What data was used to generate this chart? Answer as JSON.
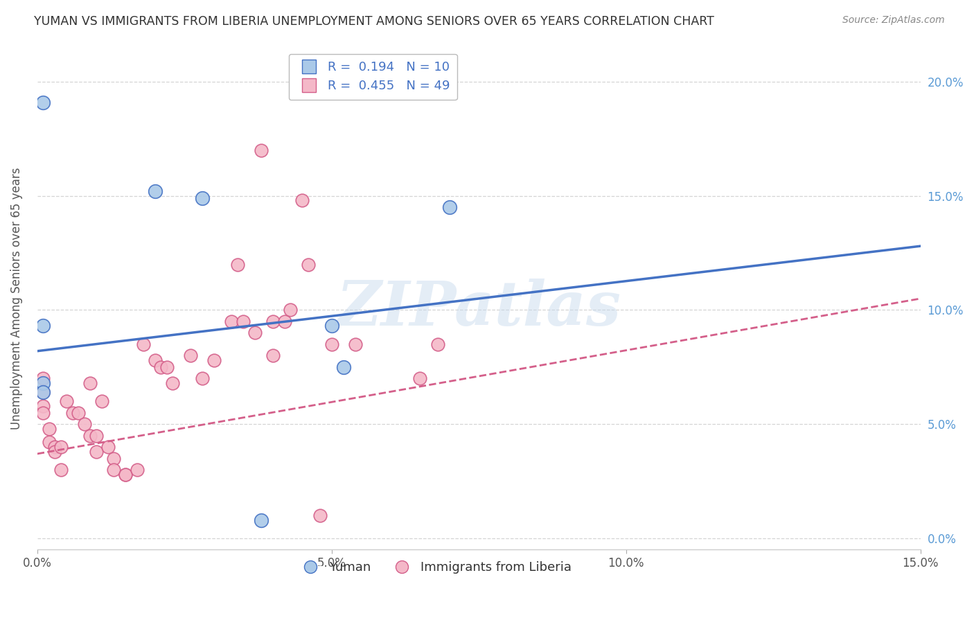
{
  "title": "YUMAN VS IMMIGRANTS FROM LIBERIA UNEMPLOYMENT AMONG SENIORS OVER 65 YEARS CORRELATION CHART",
  "source": "Source: ZipAtlas.com",
  "ylabel": "Unemployment Among Seniors over 65 years",
  "xlim": [
    0.0,
    0.15
  ],
  "ylim": [
    -0.005,
    0.215
  ],
  "xticks": [
    0.0,
    0.05,
    0.1,
    0.15
  ],
  "yticks": [
    0.0,
    0.05,
    0.1,
    0.15,
    0.2
  ],
  "xtick_labels": [
    "0.0%",
    "5.0%",
    "10.0%",
    "15.0%"
  ],
  "ytick_labels": [
    "0.0%",
    "5.0%",
    "10.0%",
    "15.0%",
    "20.0%"
  ],
  "watermark": "ZIPatlas",
  "blue_R": 0.194,
  "blue_N": 10,
  "pink_R": 0.455,
  "pink_N": 49,
  "blue_fill_color": "#aac9e8",
  "blue_edge_color": "#4472c4",
  "pink_fill_color": "#f4b8c8",
  "pink_edge_color": "#d45f8a",
  "blue_line_color": "#4472c4",
  "pink_line_color": "#d45f8a",
  "blue_scatter": [
    [
      0.001,
      0.191
    ],
    [
      0.02,
      0.152
    ],
    [
      0.028,
      0.149
    ],
    [
      0.001,
      0.093
    ],
    [
      0.001,
      0.068
    ],
    [
      0.001,
      0.064
    ],
    [
      0.05,
      0.093
    ],
    [
      0.052,
      0.075
    ],
    [
      0.07,
      0.145
    ],
    [
      0.038,
      0.008
    ]
  ],
  "pink_scatter": [
    [
      0.001,
      0.07
    ],
    [
      0.001,
      0.064
    ],
    [
      0.001,
      0.058
    ],
    [
      0.001,
      0.055
    ],
    [
      0.002,
      0.048
    ],
    [
      0.002,
      0.042
    ],
    [
      0.003,
      0.04
    ],
    [
      0.003,
      0.038
    ],
    [
      0.004,
      0.04
    ],
    [
      0.004,
      0.03
    ],
    [
      0.005,
      0.06
    ],
    [
      0.006,
      0.055
    ],
    [
      0.007,
      0.055
    ],
    [
      0.008,
      0.05
    ],
    [
      0.009,
      0.045
    ],
    [
      0.009,
      0.068
    ],
    [
      0.01,
      0.045
    ],
    [
      0.01,
      0.038
    ],
    [
      0.011,
      0.06
    ],
    [
      0.012,
      0.04
    ],
    [
      0.013,
      0.035
    ],
    [
      0.013,
      0.03
    ],
    [
      0.015,
      0.028
    ],
    [
      0.015,
      0.028
    ],
    [
      0.017,
      0.03
    ],
    [
      0.018,
      0.085
    ],
    [
      0.02,
      0.078
    ],
    [
      0.021,
      0.075
    ],
    [
      0.022,
      0.075
    ],
    [
      0.023,
      0.068
    ],
    [
      0.026,
      0.08
    ],
    [
      0.028,
      0.07
    ],
    [
      0.03,
      0.078
    ],
    [
      0.033,
      0.095
    ],
    [
      0.034,
      0.12
    ],
    [
      0.035,
      0.095
    ],
    [
      0.037,
      0.09
    ],
    [
      0.038,
      0.17
    ],
    [
      0.04,
      0.08
    ],
    [
      0.04,
      0.095
    ],
    [
      0.042,
      0.095
    ],
    [
      0.043,
      0.1
    ],
    [
      0.045,
      0.148
    ],
    [
      0.046,
      0.12
    ],
    [
      0.048,
      0.01
    ],
    [
      0.05,
      0.085
    ],
    [
      0.054,
      0.085
    ],
    [
      0.065,
      0.07
    ],
    [
      0.068,
      0.085
    ]
  ],
  "blue_trendline_x": [
    0.0,
    0.15
  ],
  "blue_trendline_y": [
    0.082,
    0.128
  ],
  "pink_trendline_x": [
    0.0,
    0.15
  ],
  "pink_trendline_y": [
    0.037,
    0.105
  ],
  "grid_color": "#d5d5d5",
  "bg_color": "#ffffff"
}
